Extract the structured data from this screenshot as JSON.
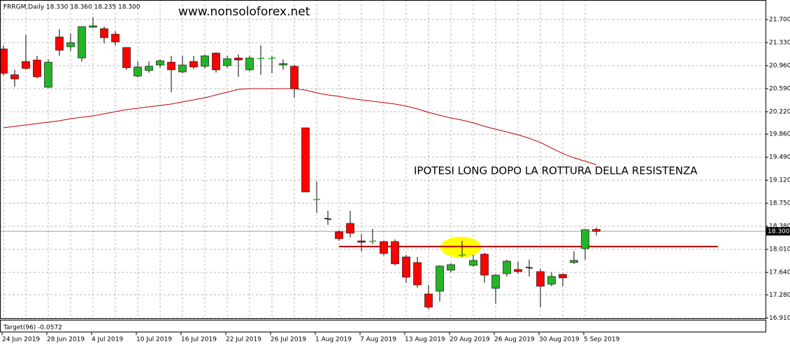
{
  "chart_data": {
    "type": "candlestick",
    "title": "FRRGM,Daily  18.330 18.360 18.235 18.300",
    "watermark": "www.nonsoloforex.net",
    "annotation": "IPOTESI LONG DOPO LA ROTTURA DELLA RESISTENZA",
    "indicator_label": "Target(96) -0.0572",
    "categories": [
      "24 Jun 2019",
      null,
      null,
      null,
      "28 Jun 2019",
      null,
      null,
      null,
      "4 Jul 2019",
      null,
      null,
      null,
      "10 Jul 2019",
      null,
      null,
      null,
      "16 Jul 2019",
      null,
      null,
      null,
      "22 Jul 2019",
      null,
      null,
      null,
      "26 Jul 2019",
      null,
      null,
      null,
      "1 Aug 2019",
      null,
      null,
      null,
      "7 Aug 2019",
      null,
      null,
      null,
      "13 Aug 2019",
      null,
      null,
      null,
      "20 Aug 2019",
      null,
      null,
      null,
      "26 Aug 2019",
      null,
      null,
      null,
      "30 Aug 2019",
      null,
      null,
      null,
      "5 Sep 2019",
      null
    ],
    "open": [
      21.229,
      20.814,
      21.027,
      21.05,
      20.613,
      21.42,
      21.263,
      21.083,
      21.577,
      21.554,
      21.465,
      21.252,
      20.792,
      20.882,
      20.971,
      21.016,
      20.859,
      21.027,
      20.949,
      21.162,
      20.96,
      21.083,
      20.893,
      21.072,
      21.072,
      20.971,
      20.949,
      19.962,
      18.808,
      18.505,
      18.292,
      18.427,
      18.146,
      18.135,
      18.135,
      18.135,
      17.889,
      17.799,
      17.294,
      17.339,
      17.676,
      17.911,
      17.754,
      17.933,
      17.384,
      17.62,
      17.687,
      17.72,
      17.653,
      17.451,
      17.608,
      17.799,
      18.023,
      18.33
    ],
    "high": [
      21.285,
      20.893,
      21.453,
      21.117,
      21.061,
      21.543,
      21.476,
      21.588,
      21.734,
      21.588,
      21.509,
      21.252,
      21.027,
      21.027,
      21.061,
      21.117,
      21.117,
      21.117,
      21.14,
      21.173,
      21.117,
      21.14,
      21.117,
      21.285,
      21.117,
      21.061,
      20.971,
      19.962,
      19.099,
      18.628,
      18.316,
      18.628,
      18.259,
      18.337,
      18.146,
      18.169,
      17.922,
      17.889,
      17.44,
      17.754,
      17.788,
      18.146,
      17.922,
      17.956,
      17.608,
      17.844,
      17.81,
      17.844,
      17.698,
      17.642,
      17.62,
      17.978,
      18.337,
      18.36
    ],
    "low": [
      20.803,
      20.624,
      20.893,
      20.758,
      20.601,
      21.117,
      21.196,
      21.027,
      21.565,
      21.319,
      21.285,
      20.893,
      20.77,
      20.848,
      20.927,
      20.534,
      20.837,
      20.904,
      20.915,
      20.848,
      20.927,
      20.781,
      20.87,
      20.814,
      20.837,
      20.893,
      20.444,
      18.931,
      18.595,
      18.405,
      18.146,
      18.203,
      17.978,
      18.09,
      17.911,
      17.754,
      17.474,
      17.395,
      17.048,
      17.171,
      17.642,
      17.889,
      17.732,
      17.474,
      17.138,
      17.575,
      17.62,
      17.575,
      17.082,
      17.418,
      17.418,
      17.777,
      17.844,
      18.235
    ],
    "close": [
      20.837,
      20.747,
      20.915,
      20.781,
      21.016,
      21.207,
      21.33,
      21.588,
      21.599,
      21.409,
      21.341,
      20.927,
      20.938,
      20.949,
      21.039,
      20.893,
      20.971,
      20.938,
      21.117,
      20.893,
      21.072,
      21.05,
      21.083,
      21.083,
      21.083,
      20.994,
      20.59,
      18.931,
      18.815,
      18.494,
      18.181,
      18.27,
      18.124,
      18.146,
      17.944,
      17.777,
      17.563,
      17.44,
      17.082,
      17.743,
      17.765,
      17.922,
      17.833,
      17.597,
      17.597,
      17.821,
      17.653,
      17.709,
      17.418,
      17.575,
      17.552,
      17.833,
      18.326,
      18.3
    ],
    "up_color": "#27b327",
    "down_color": "#ff0000",
    "ma": {
      "color": "#c00000",
      "values": [
        19.962,
        19.985,
        20.007,
        20.03,
        20.052,
        20.075,
        20.108,
        20.131,
        20.153,
        20.187,
        20.22,
        20.254,
        20.276,
        20.299,
        20.321,
        20.344,
        20.377,
        20.411,
        20.444,
        20.489,
        20.534,
        20.579,
        20.59,
        20.59,
        20.59,
        20.59,
        20.59,
        20.568,
        20.523,
        20.489,
        20.467,
        20.433,
        20.411,
        20.388,
        20.366,
        20.344,
        20.31,
        20.265,
        20.209,
        20.164,
        20.119,
        20.086,
        20.041,
        19.985,
        19.94,
        19.895,
        19.85,
        19.794,
        19.727,
        19.637,
        19.548,
        19.48,
        19.424,
        19.368
      ]
    },
    "resistance": {
      "value": 18.055,
      "color": "#c00000"
    },
    "last_price": {
      "value": 18.3,
      "label": "18.300"
    },
    "ylim": [
      16.902,
      22.014
    ],
    "yticks": [
      {
        "value": 21.7,
        "label": "21.700"
      },
      {
        "value": 21.33,
        "label": "21.330"
      },
      {
        "value": 20.96,
        "label": "20.960"
      },
      {
        "value": 20.59,
        "label": "20.590"
      },
      {
        "value": 20.22,
        "label": "20.220"
      },
      {
        "value": 19.86,
        "label": "19.860"
      },
      {
        "value": 19.49,
        "label": "19.490"
      },
      {
        "value": 19.12,
        "label": "19.120"
      },
      {
        "value": 18.75,
        "label": "18.750"
      },
      {
        "value": 18.38,
        "label": "18.380"
      },
      {
        "value": 18.01,
        "label": "18.010"
      },
      {
        "value": 17.64,
        "label": "17.640"
      },
      {
        "value": 17.28,
        "label": "17.280"
      },
      {
        "value": 16.91,
        "label": "16.910"
      }
    ],
    "grid": true
  }
}
